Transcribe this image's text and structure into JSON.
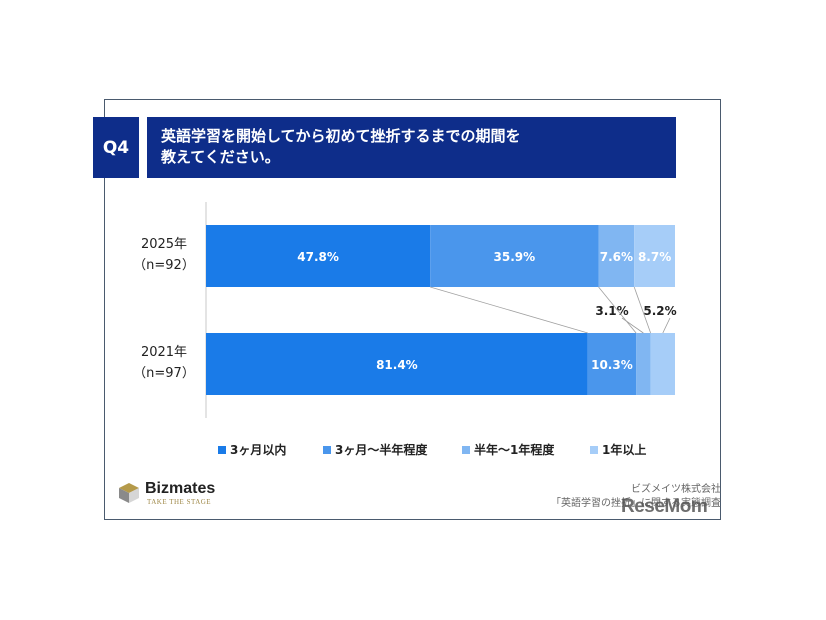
{
  "question": {
    "badge": "Q4",
    "line1": "英語学習を開始してから初めて挫折するまでの期間を",
    "line2": "教えてください。"
  },
  "chart_data": {
    "type": "bar",
    "orientation": "horizontal-stacked-100",
    "categories": [
      {
        "label": "2025年",
        "n": "（n=92）"
      },
      {
        "label": "2021年",
        "n": "（n=97）"
      }
    ],
    "series": [
      {
        "name": "3ヶ月以内",
        "color": "#1a7be8",
        "values": [
          47.8,
          81.4
        ],
        "labels": [
          "47.8%",
          "81.4%"
        ]
      },
      {
        "name": "3ヶ月～半年程度",
        "color": "#4a96ec",
        "values": [
          35.9,
          10.3
        ],
        "labels": [
          "35.9%",
          "10.3%"
        ]
      },
      {
        "name": "半年～1年程度",
        "color": "#80b6f2",
        "values": [
          7.6,
          3.1
        ],
        "labels": [
          "7.6%",
          "3.1%"
        ]
      },
      {
        "name": "1年以上",
        "color": "#a6cdf8",
        "values": [
          8.7,
          5.2
        ],
        "labels": [
          "8.7%",
          "5.2%"
        ]
      }
    ],
    "xlim": [
      0,
      100
    ]
  },
  "legend": [
    "3ヶ月以内",
    "3ヶ月～半年程度",
    "半年～1年程度",
    "1年以上"
  ],
  "logo": {
    "name": "Bizmates",
    "tagline": "TAKE THE STAGE"
  },
  "source": {
    "line1": "ビズメイツ株式会社",
    "line2": "「英語学習の挫折」に関する実態調査"
  },
  "watermark": "ReseMom"
}
